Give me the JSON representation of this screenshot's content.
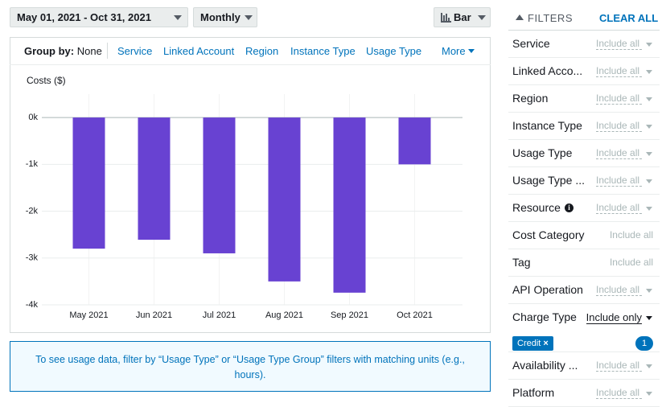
{
  "toolbar": {
    "date_range": "May 01, 2021 - Oct 31, 2021",
    "granularity": "Monthly",
    "chart_style": "Bar"
  },
  "group_by": {
    "label": "Group by:",
    "value": "None",
    "options": [
      "Service",
      "Linked Account",
      "Region",
      "Instance Type",
      "Usage Type"
    ],
    "more": "More"
  },
  "chart_data": {
    "type": "bar",
    "y_label": "Costs ($)",
    "categories": [
      "May 2021",
      "Jun 2021",
      "Jul 2021",
      "Aug 2021",
      "Sep 2021",
      "Oct 2021"
    ],
    "values": [
      -2800,
      -2610,
      -2900,
      -3500,
      -3740,
      -1000
    ],
    "color": "#6842d2",
    "ylim": [
      -4000,
      500
    ],
    "yticks": [
      {
        "value": 0,
        "label": "0k"
      },
      {
        "value": -1000,
        "label": "-1k"
      },
      {
        "value": -2000,
        "label": "-2k"
      },
      {
        "value": -3000,
        "label": "-3k"
      },
      {
        "value": -4000,
        "label": "-4k"
      }
    ],
    "grid": true
  },
  "info": "To see usage data, filter by “Usage Type” or “Usage Type Group” filters with matching units (e.g., hours).",
  "filters": {
    "header": "FILTERS",
    "clear_all": "CLEAR ALL",
    "items": [
      {
        "name": "Service",
        "value": "Include all",
        "dropdown": true
      },
      {
        "name": "Linked Acco...",
        "value": "Include all",
        "dropdown": true
      },
      {
        "name": "Region",
        "value": "Include all",
        "dropdown": true
      },
      {
        "name": "Instance Type",
        "value": "Include all",
        "dropdown": true
      },
      {
        "name": "Usage Type",
        "value": "Include all",
        "dropdown": true
      },
      {
        "name": "Usage Type ...",
        "value": "Include all",
        "dropdown": true
      },
      {
        "name": "Resource",
        "value": "Include all",
        "dropdown": true
      },
      {
        "name": "Cost Category",
        "value": "Include all",
        "dropdown": false
      },
      {
        "name": "Tag",
        "value": "Include all",
        "dropdown": false
      },
      {
        "name": "API Operation",
        "value": "Include all",
        "dropdown": true
      },
      {
        "name": "Charge Type",
        "value": "Include only",
        "dropdown": true,
        "chip": "Credit",
        "count": "1"
      },
      {
        "name": "Availability ...",
        "value": "Include all",
        "dropdown": true
      },
      {
        "name": "Platform",
        "value": "Include all",
        "dropdown": true
      }
    ]
  }
}
